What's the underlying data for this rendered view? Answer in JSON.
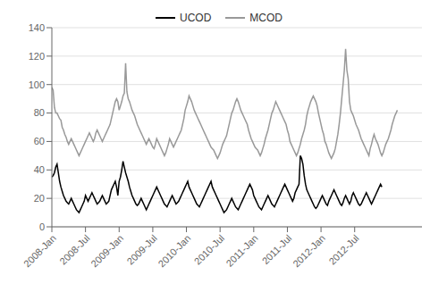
{
  "chart_data": {
    "type": "line",
    "title": "",
    "x": [
      0,
      1,
      2,
      3,
      4,
      5,
      6,
      7,
      8,
      9,
      10,
      11,
      12,
      13,
      14,
      15,
      16,
      17,
      18,
      19,
      20,
      21,
      22,
      23,
      24,
      25,
      26,
      27,
      28,
      29,
      30,
      31,
      32,
      33,
      34,
      35,
      36,
      37,
      38,
      39,
      40,
      41,
      42,
      43,
      44,
      45,
      46,
      47,
      48,
      49,
      50,
      51,
      52,
      53,
      54,
      55,
      56,
      57,
      58,
      59,
      60,
      61,
      62,
      63,
      64,
      65,
      66,
      67,
      68,
      69,
      70,
      71,
      72,
      73,
      74,
      75,
      76,
      77,
      78,
      79,
      80,
      81,
      82,
      83,
      84,
      85,
      86,
      87,
      88,
      89,
      90,
      91,
      92,
      93,
      94,
      95,
      96,
      97,
      98,
      99,
      100,
      101,
      102,
      103,
      104,
      105,
      106,
      107,
      108,
      109,
      110,
      111,
      112,
      113,
      114,
      115,
      116,
      117,
      118,
      119,
      120,
      121,
      122,
      123,
      124,
      125,
      126,
      127,
      128,
      129,
      130,
      131,
      132,
      133,
      134,
      135,
      136,
      137,
      138,
      139,
      140,
      141,
      142,
      143,
      144,
      145,
      146,
      147,
      148,
      149,
      150,
      151,
      152,
      153,
      154,
      155,
      156,
      157,
      158,
      159,
      160,
      161,
      162,
      163,
      164,
      165,
      166,
      167,
      168,
      169,
      170,
      171,
      172,
      173,
      174,
      175,
      176,
      177,
      178,
      179,
      180,
      181,
      182,
      183,
      184,
      185,
      186,
      187,
      188,
      189,
      190,
      191,
      192,
      193,
      194,
      195,
      196,
      197,
      198,
      199,
      200,
      201,
      202,
      203,
      204,
      205,
      206,
      207,
      208,
      209,
      210,
      211,
      212,
      213,
      214,
      215,
      216,
      217,
      218,
      219,
      220,
      221,
      222,
      223,
      224,
      225,
      226,
      227,
      228,
      229,
      230,
      231,
      232,
      233,
      234,
      235,
      236,
      237,
      238,
      239,
      240,
      241,
      242,
      243,
      244,
      245,
      246,
      247,
      248,
      249,
      250,
      251,
      252,
      253,
      254,
      255,
      256,
      257,
      258,
      259,
      260,
      261,
      262,
      263,
      264,
      265,
      266,
      267
    ],
    "series": [
      {
        "name": "UCOD",
        "color": "#000000",
        "values": [
          35,
          36,
          38,
          42,
          44,
          38,
          32,
          28,
          25,
          22,
          20,
          18,
          17,
          16,
          18,
          20,
          18,
          16,
          14,
          12,
          11,
          10,
          12,
          14,
          16,
          18,
          22,
          20,
          18,
          20,
          22,
          24,
          22,
          20,
          18,
          16,
          17,
          18,
          20,
          22,
          20,
          18,
          16,
          17,
          18,
          22,
          26,
          28,
          30,
          32,
          28,
          22,
          32,
          35,
          40,
          46,
          42,
          38,
          35,
          32,
          28,
          25,
          22,
          20,
          18,
          16,
          15,
          16,
          18,
          20,
          18,
          16,
          14,
          12,
          14,
          16,
          18,
          20,
          22,
          24,
          26,
          28,
          26,
          24,
          22,
          20,
          18,
          16,
          15,
          14,
          16,
          18,
          20,
          22,
          20,
          18,
          16,
          17,
          18,
          20,
          22,
          24,
          26,
          28,
          30,
          32,
          28,
          26,
          24,
          22,
          20,
          18,
          16,
          15,
          14,
          16,
          18,
          20,
          22,
          24,
          26,
          28,
          30,
          32,
          28,
          26,
          24,
          22,
          20,
          18,
          16,
          14,
          12,
          10,
          11,
          12,
          14,
          16,
          18,
          20,
          18,
          16,
          14,
          13,
          12,
          14,
          16,
          18,
          20,
          22,
          24,
          26,
          28,
          30,
          28,
          26,
          22,
          20,
          18,
          16,
          14,
          13,
          12,
          14,
          16,
          18,
          20,
          22,
          20,
          18,
          16,
          15,
          14,
          16,
          18,
          20,
          22,
          24,
          26,
          28,
          30,
          28,
          26,
          24,
          22,
          20,
          18,
          20,
          24,
          26,
          28,
          30,
          50,
          48,
          44,
          36,
          30,
          26,
          24,
          22,
          20,
          18,
          16,
          14,
          13,
          14,
          16,
          18,
          20,
          22,
          20,
          18,
          16,
          15,
          18,
          20,
          22,
          24,
          26,
          24,
          22,
          20,
          18,
          16,
          15,
          17,
          20,
          22,
          20,
          18,
          16,
          18,
          22,
          24,
          22,
          20,
          18,
          16,
          15,
          16,
          18,
          20,
          22,
          24,
          22,
          20,
          18,
          16,
          18,
          20,
          22,
          24,
          26,
          28,
          30,
          28,
          null,
          null,
          null,
          null,
          null,
          null,
          null,
          null,
          null,
          null,
          null,
          null
        ]
      },
      {
        "name": "MCOD",
        "color": "#999999",
        "values": [
          98,
          96,
          84,
          80,
          80,
          78,
          76,
          75,
          70,
          68,
          65,
          63,
          60,
          58,
          60,
          62,
          60,
          58,
          56,
          54,
          52,
          50,
          52,
          54,
          56,
          58,
          60,
          62,
          64,
          66,
          64,
          62,
          60,
          62,
          66,
          68,
          66,
          64,
          62,
          60,
          62,
          64,
          66,
          68,
          70,
          72,
          76,
          80,
          84,
          88,
          90,
          88,
          82,
          85,
          88,
          92,
          94,
          115,
          95,
          90,
          88,
          85,
          82,
          80,
          78,
          75,
          72,
          70,
          68,
          66,
          64,
          62,
          60,
          58,
          60,
          62,
          60,
          58,
          56,
          55,
          58,
          62,
          60,
          58,
          56,
          54,
          52,
          50,
          52,
          55,
          58,
          62,
          60,
          58,
          56,
          58,
          60,
          62,
          64,
          66,
          68,
          72,
          76,
          82,
          85,
          88,
          92,
          90,
          88,
          85,
          82,
          80,
          78,
          76,
          74,
          72,
          70,
          68,
          66,
          64,
          62,
          60,
          58,
          56,
          55,
          54,
          52,
          50,
          48,
          50,
          52,
          55,
          58,
          60,
          62,
          64,
          68,
          72,
          76,
          80,
          82,
          85,
          88,
          90,
          88,
          85,
          82,
          80,
          78,
          76,
          74,
          72,
          68,
          65,
          62,
          60,
          58,
          56,
          55,
          54,
          52,
          50,
          52,
          55,
          58,
          62,
          65,
          68,
          72,
          76,
          80,
          82,
          85,
          88,
          86,
          84,
          82,
          80,
          78,
          76,
          74,
          72,
          68,
          65,
          60,
          58,
          56,
          54,
          52,
          50,
          52,
          55,
          58,
          62,
          65,
          68,
          72,
          78,
          82,
          85,
          88,
          90,
          92,
          90,
          88,
          85,
          80,
          76,
          72,
          68,
          65,
          60,
          58,
          55,
          52,
          50,
          48,
          50,
          52,
          55,
          60,
          65,
          72,
          80,
          90,
          100,
          110,
          125,
          110,
          104,
          88,
          82,
          80,
          78,
          75,
          72,
          70,
          68,
          65,
          62,
          60,
          58,
          56,
          54,
          52,
          50,
          55,
          58,
          62,
          65,
          62,
          60,
          58,
          55,
          52,
          50,
          52,
          55,
          58,
          60,
          62,
          65,
          68,
          72,
          75,
          78,
          80,
          82
        ]
      }
    ],
    "xlim": [
      0,
      286
    ],
    "xticks": [
      {
        "value": 0,
        "label": "2008-Jan"
      },
      {
        "value": 26,
        "label": "2008-Jul"
      },
      {
        "value": 52,
        "label": "2009-Jan"
      },
      {
        "value": 78,
        "label": "2009-Jul"
      },
      {
        "value": 104,
        "label": "2010-Jan"
      },
      {
        "value": 130,
        "label": "2010-Jul"
      },
      {
        "value": 156,
        "label": "2011-Jan"
      },
      {
        "value": 182,
        "label": "2011-Jul"
      },
      {
        "value": 208,
        "label": "2012-Jan"
      },
      {
        "value": 234,
        "label": "2012-Jul"
      }
    ],
    "ylim": [
      0,
      140
    ],
    "yticks": [
      0,
      20,
      40,
      60,
      80,
      100,
      120,
      140
    ],
    "grid": true,
    "legend": "upper center"
  }
}
